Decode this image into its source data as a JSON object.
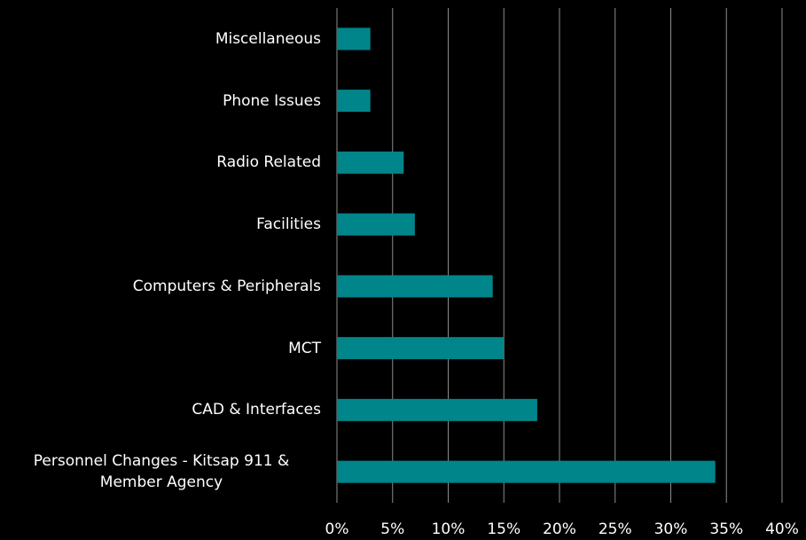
{
  "chart_data": {
    "type": "bar",
    "orientation": "horizontal",
    "categories": [
      "Miscellaneous",
      "Phone Issues",
      "Radio Related",
      "Facilities",
      "Computers & Peripherals",
      "MCT",
      "CAD & Interfaces",
      "Personnel Changes - Kitsap 911 & Member Agency"
    ],
    "values": [
      3,
      3,
      6,
      7,
      14,
      15,
      18,
      34
    ],
    "color": "#00858a",
    "xlim": [
      0,
      40
    ],
    "xticks": [
      {
        "value": 0,
        "label": "0%"
      },
      {
        "value": 5,
        "label": "5%"
      },
      {
        "value": 10,
        "label": "10%"
      },
      {
        "value": 15,
        "label": "15%"
      },
      {
        "value": 20,
        "label": "20%"
      },
      {
        "value": 25,
        "label": "25%"
      },
      {
        "value": 30,
        "label": "30%"
      },
      {
        "value": 35,
        "label": "35%"
      },
      {
        "value": 40,
        "label": "40%"
      }
    ],
    "grid": true
  }
}
